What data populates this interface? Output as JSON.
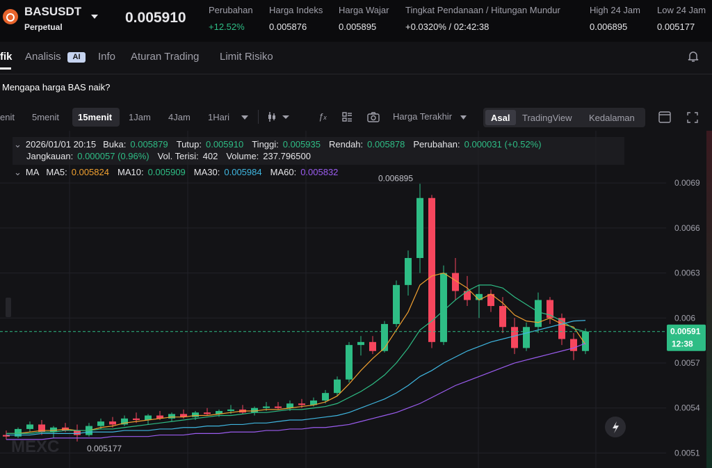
{
  "header": {
    "symbol": "BASUSDT",
    "contract": "Perpetual",
    "price": "0.005910",
    "stats": [
      {
        "label": "Perubahan",
        "value": "+12.52%"
      },
      {
        "label": "Harga Indeks",
        "value": "0.005876"
      },
      {
        "label": "Harga Wajar",
        "value": "0.005895"
      },
      {
        "label": "Tingkat Pendanaan / Hitungan Mundur",
        "value": "+0.0320% / 02:42:38"
      },
      {
        "label": "High 24 Jam",
        "value": "0.006895"
      },
      {
        "label": "Low 24 Jam",
        "value": "0.005177"
      }
    ]
  },
  "tabs": [
    "fik",
    "Analisis",
    "Info",
    "Aturan Trading",
    "Limit Risiko"
  ],
  "analysis_badge": "AI",
  "prompt": "Mengapa harga BAS naik?",
  "toolbar": {
    "intervals": [
      "enit",
      "5menit",
      "15menit",
      "1Jam",
      "4Jam",
      "1Hari"
    ],
    "price_type": "Harga Terakhir",
    "views": [
      "Asal",
      "TradingView",
      "Kedalaman"
    ]
  },
  "info": {
    "datetime": "2026/01/01 20:15",
    "row1": [
      {
        "label": "Buka:",
        "value": "0.005879"
      },
      {
        "label": "Tutup:",
        "value": "0.005910"
      },
      {
        "label": "Tinggi:",
        "value": "0.005935"
      },
      {
        "label": "Rendah:",
        "value": "0.005878"
      },
      {
        "label": "Perubahan:",
        "value": "0.000031 (+0.52%)"
      }
    ],
    "row2": [
      {
        "label": "Jangkauan:",
        "value": "0.000057 (0.96%)"
      },
      {
        "label": "Vol. Terisi:",
        "value": "402"
      },
      {
        "label": "Volume:",
        "value": "237.796500"
      }
    ]
  },
  "chart_data": {
    "type": "candlestick",
    "ma_label": "MA",
    "countdown": "12:38",
    "watermark": "MEXC",
    "ylim": [
      0.005,
      0.00723
    ],
    "yticks": [
      0.0051,
      0.0054,
      0.0057,
      {
        "value": 0.006,
        "label": "0.006"
      },
      0.0063,
      0.0066,
      0.0069
    ],
    "up_color": "#2ebd85",
    "down_color": "#f6465d",
    "candles": [
      [
        0.00522,
        0.00525,
        0.00519,
        0.00521
      ],
      [
        0.00521,
        0.00527,
        0.0052,
        0.00526
      ],
      [
        0.00526,
        0.00531,
        0.00524,
        0.00529
      ],
      [
        0.00529,
        0.00532,
        0.00522,
        0.00524
      ],
      [
        0.00524,
        0.00528,
        0.0052,
        0.00527
      ],
      [
        0.00527,
        0.0053,
        0.00524,
        0.00525
      ],
      [
        0.00525,
        0.00529,
        0.005177,
        0.00522
      ],
      [
        0.00522,
        0.0053,
        0.00521,
        0.00528
      ],
      [
        0.00528,
        0.00533,
        0.00526,
        0.00531
      ],
      [
        0.00531,
        0.00534,
        0.00527,
        0.00529
      ],
      [
        0.00529,
        0.00535,
        0.00528,
        0.00533
      ],
      [
        0.00533,
        0.00537,
        0.0053,
        0.00532
      ],
      [
        0.00532,
        0.00536,
        0.00529,
        0.00535
      ],
      [
        0.00535,
        0.00538,
        0.00532,
        0.00533
      ],
      [
        0.00533,
        0.00537,
        0.00531,
        0.00536
      ],
      [
        0.00536,
        0.00539,
        0.00533,
        0.00534
      ],
      [
        0.00534,
        0.00538,
        0.00532,
        0.00537
      ],
      [
        0.00537,
        0.0054,
        0.00535,
        0.00536
      ],
      [
        0.00536,
        0.00539,
        0.00534,
        0.00538
      ],
      [
        0.00538,
        0.00542,
        0.00536,
        0.00539
      ],
      [
        0.00539,
        0.00542,
        0.00536,
        0.00537
      ],
      [
        0.00537,
        0.00541,
        0.00535,
        0.0054
      ],
      [
        0.0054,
        0.00544,
        0.00538,
        0.00541
      ],
      [
        0.00541,
        0.00544,
        0.00539,
        0.0054
      ],
      [
        0.0054,
        0.00545,
        0.00538,
        0.00543
      ],
      [
        0.00543,
        0.00546,
        0.0054,
        0.00542
      ],
      [
        0.00542,
        0.00547,
        0.00541,
        0.00545
      ],
      [
        0.00545,
        0.00552,
        0.00543,
        0.0055
      ],
      [
        0.0055,
        0.00561,
        0.00548,
        0.00559
      ],
      [
        0.00559,
        0.00584,
        0.00557,
        0.00582
      ],
      [
        0.00582,
        0.00588,
        0.00575,
        0.00584
      ],
      [
        0.00584,
        0.00588,
        0.00576,
        0.00578
      ],
      [
        0.00578,
        0.00598,
        0.00577,
        0.00596
      ],
      [
        0.00596,
        0.00625,
        0.00594,
        0.00622
      ],
      [
        0.00622,
        0.00645,
        0.00615,
        0.0064
      ],
      [
        0.0064,
        0.006895,
        0.0063,
        0.0068
      ],
      [
        0.0068,
        0.00682,
        0.0058,
        0.00584
      ],
      [
        0.00584,
        0.00635,
        0.00582,
        0.0063
      ],
      [
        0.0063,
        0.0064,
        0.00612,
        0.00618
      ],
      [
        0.00618,
        0.00628,
        0.00608,
        0.00612
      ],
      [
        0.00612,
        0.00622,
        0.006,
        0.00616
      ],
      [
        0.00616,
        0.00619,
        0.00604,
        0.00608
      ],
      [
        0.00608,
        0.00614,
        0.0059,
        0.00594
      ],
      [
        0.00594,
        0.006,
        0.00576,
        0.0058
      ],
      [
        0.0058,
        0.00597,
        0.00578,
        0.00594
      ],
      [
        0.00594,
        0.00617,
        0.0059,
        0.00612
      ],
      [
        0.00612,
        0.00614,
        0.00596,
        0.006
      ],
      [
        0.006,
        0.00603,
        0.00582,
        0.00586
      ],
      [
        0.00586,
        0.0059,
        0.00572,
        0.00578
      ],
      [
        0.00578,
        0.00593,
        0.00576,
        0.00591
      ]
    ],
    "series": [
      {
        "name": "MA5:",
        "color": "#f0a030",
        "values": [
          0.00523,
          0.00523,
          0.00524,
          0.00525,
          0.00525,
          0.00526,
          0.00525,
          0.00525,
          0.00527,
          0.00528,
          0.0053,
          0.00531,
          0.00532,
          0.00533,
          0.00534,
          0.00534,
          0.00535,
          0.00535,
          0.00536,
          0.00537,
          0.00538,
          0.00538,
          0.00539,
          0.00539,
          0.0054,
          0.00541,
          0.00542,
          0.00544,
          0.00548,
          0.00556,
          0.00565,
          0.00573,
          0.0058,
          0.00592,
          0.00604,
          0.00622,
          0.00628,
          0.0063,
          0.00625,
          0.0062,
          0.00612,
          0.00616,
          0.0061,
          0.00602,
          0.00598,
          0.00597,
          0.006,
          0.00596,
          0.00594,
          0.005824
        ]
      },
      {
        "name": "MA10:",
        "color": "#2ebd85",
        "values": [
          0.00523,
          0.00523,
          0.00523,
          0.00524,
          0.00524,
          0.00525,
          0.00525,
          0.00525,
          0.00526,
          0.00526,
          0.00527,
          0.00528,
          0.00529,
          0.0053,
          0.00531,
          0.00532,
          0.00533,
          0.00534,
          0.00535,
          0.00535,
          0.00536,
          0.00537,
          0.00537,
          0.00538,
          0.00539,
          0.00539,
          0.0054,
          0.00541,
          0.00543,
          0.00547,
          0.00551,
          0.00556,
          0.00562,
          0.0057,
          0.0058,
          0.00592,
          0.00598,
          0.00605,
          0.00612,
          0.00618,
          0.00622,
          0.00622,
          0.0062,
          0.00614,
          0.00609,
          0.00604,
          0.00602,
          0.00598,
          0.00593,
          0.005909
        ]
      },
      {
        "name": "MA30:",
        "color": "#3fb6e0",
        "values": [
          0.00522,
          0.00522,
          0.00522,
          0.00523,
          0.00523,
          0.00523,
          0.00523,
          0.00524,
          0.00524,
          0.00524,
          0.00525,
          0.00525,
          0.00525,
          0.00526,
          0.00526,
          0.00527,
          0.00527,
          0.00528,
          0.00528,
          0.00529,
          0.00529,
          0.0053,
          0.0053,
          0.00531,
          0.00532,
          0.00532,
          0.00533,
          0.00534,
          0.00535,
          0.00537,
          0.0054,
          0.00543,
          0.00546,
          0.0055,
          0.00555,
          0.00561,
          0.00565,
          0.0057,
          0.00574,
          0.00578,
          0.00581,
          0.00584,
          0.00586,
          0.00588,
          0.0059,
          0.00592,
          0.00594,
          0.00596,
          0.00598,
          0.005984
        ]
      },
      {
        "name": "MA60:",
        "color": "#9b5cf0",
        "values": [
          0.00519,
          0.00519,
          0.00519,
          0.00519,
          0.0052,
          0.0052,
          0.0052,
          0.0052,
          0.0052,
          0.00521,
          0.00521,
          0.00521,
          0.00521,
          0.00522,
          0.00522,
          0.00522,
          0.00523,
          0.00523,
          0.00523,
          0.00524,
          0.00524,
          0.00524,
          0.00525,
          0.00525,
          0.00526,
          0.00526,
          0.00527,
          0.00527,
          0.00528,
          0.00529,
          0.00531,
          0.00533,
          0.00535,
          0.00537,
          0.0054,
          0.00543,
          0.00547,
          0.00551,
          0.00555,
          0.00558,
          0.00561,
          0.00564,
          0.00567,
          0.0057,
          0.00572,
          0.00574,
          0.00576,
          0.00578,
          0.0058,
          0.005832
        ]
      }
    ]
  }
}
